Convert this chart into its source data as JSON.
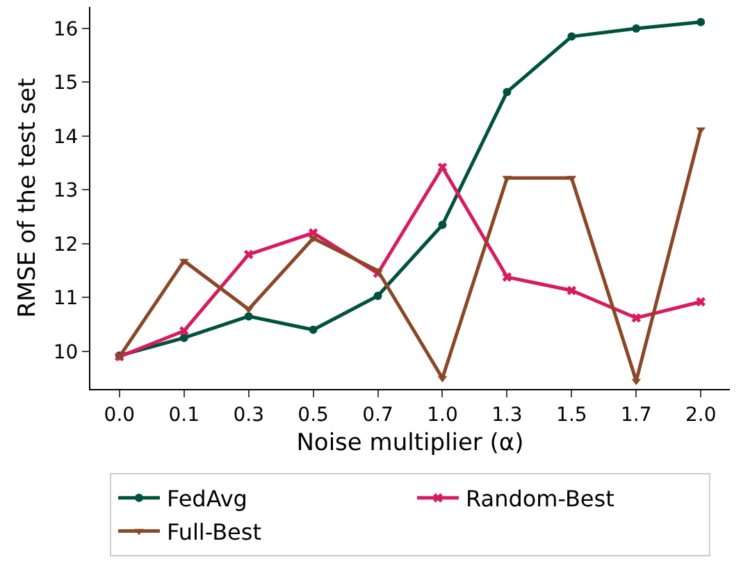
{
  "chart_data": {
    "type": "line",
    "xlabel": "Noise multiplier (α)",
    "ylabel": "RMSE of the test set",
    "categories": [
      "0.0",
      "0.1",
      "0.3",
      "0.5",
      "0.7",
      "1.0",
      "1.3",
      "1.5",
      "1.7",
      "2.0"
    ],
    "series": [
      {
        "name": "FedAvg",
        "color": "#00523f",
        "marker": "circle",
        "values": [
          9.92,
          10.25,
          10.65,
          10.4,
          11.03,
          12.35,
          14.82,
          15.85,
          16.0,
          16.12
        ]
      },
      {
        "name": "Random-Best",
        "color": "#d81b60",
        "marker": "cross",
        "values": [
          9.9,
          10.38,
          11.8,
          12.2,
          11.45,
          13.42,
          11.38,
          11.13,
          10.62,
          10.92
        ]
      },
      {
        "name": "Full-Best",
        "color": "#8b4726",
        "marker": "triangle",
        "values": [
          9.9,
          11.68,
          10.78,
          12.1,
          11.5,
          9.5,
          13.22,
          13.22,
          9.45,
          14.12
        ]
      }
    ],
    "ylim": [
      9.3,
      16.4
    ],
    "yticks": [
      10,
      11,
      12,
      13,
      14,
      15,
      16
    ],
    "grid": false,
    "legend": "bottom",
    "line_style": "solid"
  }
}
